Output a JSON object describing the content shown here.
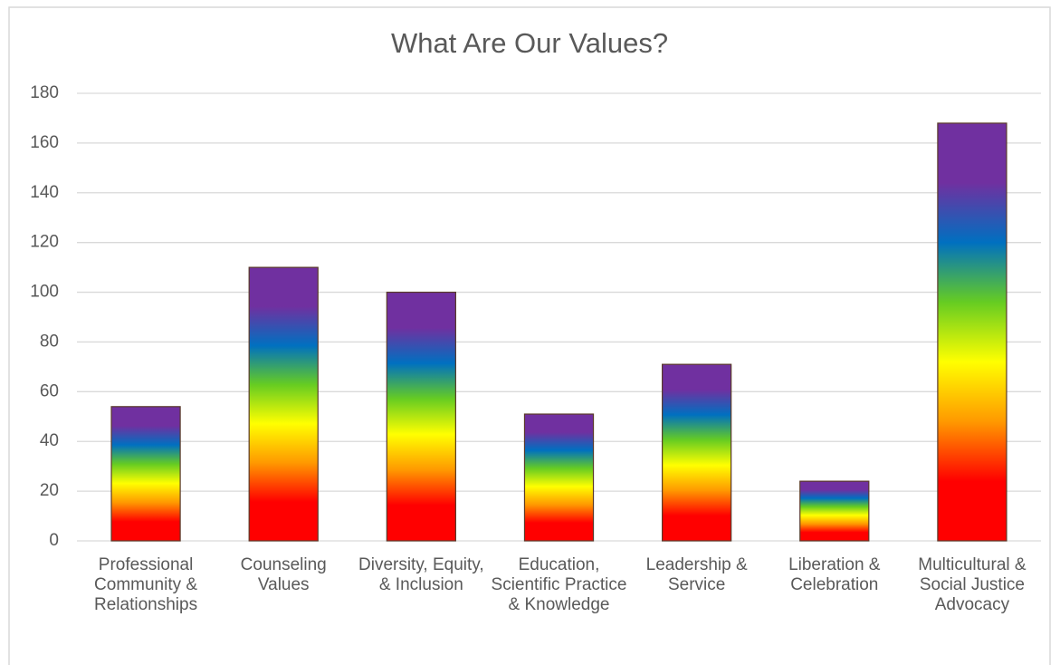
{
  "chart_data": {
    "type": "bar",
    "title": "What Are Our Values?",
    "categories": [
      "Professional Community & Relationships",
      "Counseling Values",
      "Diversity, Equity, & Inclusion",
      "Education, Scientific Practice & Knowledge",
      "Leadership & Service",
      "Liberation & Celebration",
      "Multicultural & Social Justice Advocacy"
    ],
    "values": [
      54,
      110,
      100,
      51,
      71,
      24,
      168
    ],
    "gradient": [
      "#ff0000",
      "#ff0000",
      "#ff9900",
      "#ffff00",
      "#66cc22",
      "#0070c0",
      "#7030a0",
      "#7030a0"
    ],
    "ylim": [
      0,
      180
    ],
    "yticks": [
      0,
      20,
      40,
      60,
      80,
      100,
      120,
      140,
      160,
      180
    ],
    "grid": true
  }
}
